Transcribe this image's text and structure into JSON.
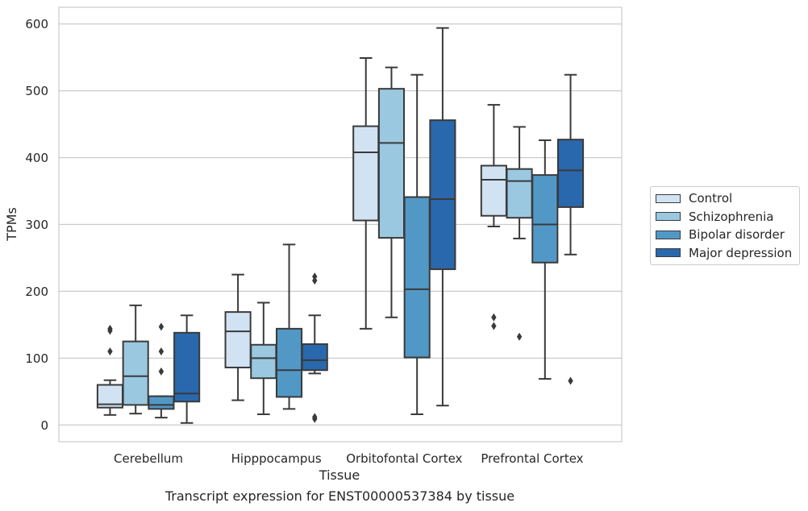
{
  "caption": "Transcript expression for ENST00000537384 by tissue",
  "chart_data": {
    "type": "box",
    "title": "",
    "xlabel": "Tissue",
    "ylabel": "TPMs",
    "ylim": [
      -25,
      625
    ],
    "yticks": [
      0,
      100,
      200,
      300,
      400,
      500,
      600
    ],
    "grid": "horizontal",
    "legend_position": "right",
    "categories": [
      "Cerebellum",
      "Hipppocampus",
      "Orbitofontal Cortex",
      "Prefrontal Cortex"
    ],
    "series": [
      {
        "name": "Control",
        "color": "#d1e3f3",
        "boxes": [
          {
            "whislo": 15,
            "q1": 26,
            "med": 31,
            "q3": 60,
            "whishi": 67,
            "fliers": [
              110,
              141,
              144
            ]
          },
          {
            "whislo": 37,
            "q1": 86,
            "med": 140,
            "q3": 169,
            "whishi": 225,
            "fliers": []
          },
          {
            "whislo": 144,
            "q1": 306,
            "med": 408,
            "q3": 447,
            "whishi": 549,
            "fliers": []
          },
          {
            "whislo": 297,
            "q1": 313,
            "med": 367,
            "q3": 388,
            "whishi": 479,
            "fliers": [
              148,
              161
            ]
          }
        ]
      },
      {
        "name": "Schizophrenia",
        "color": "#9ac8e1",
        "boxes": [
          {
            "whislo": 17,
            "q1": 30,
            "med": 73,
            "q3": 125,
            "whishi": 179,
            "fliers": []
          },
          {
            "whislo": 16,
            "q1": 70,
            "med": 100,
            "q3": 120,
            "whishi": 183,
            "fliers": []
          },
          {
            "whislo": 161,
            "q1": 280,
            "med": 422,
            "q3": 503,
            "whishi": 535,
            "fliers": []
          },
          {
            "whislo": 279,
            "q1": 310,
            "med": 365,
            "q3": 383,
            "whishi": 446,
            "fliers": [
              132
            ]
          }
        ]
      },
      {
        "name": "Bipolar disorder",
        "color": "#5298c6",
        "boxes": [
          {
            "whislo": 11,
            "q1": 24,
            "med": 30,
            "q3": 43,
            "whishi": 43,
            "fliers": [
              80,
              110,
              147
            ]
          },
          {
            "whislo": 24,
            "q1": 42,
            "med": 82,
            "q3": 144,
            "whishi": 270,
            "fliers": []
          },
          {
            "whislo": 16,
            "q1": 101,
            "med": 203,
            "q3": 341,
            "whishi": 524,
            "fliers": []
          },
          {
            "whislo": 69,
            "q1": 243,
            "med": 300,
            "q3": 374,
            "whishi": 426,
            "fliers": []
          }
        ]
      },
      {
        "name": "Major depression",
        "color": "#2a68ad",
        "boxes": [
          {
            "whislo": 3,
            "q1": 35,
            "med": 47,
            "q3": 138,
            "whishi": 164,
            "fliers": []
          },
          {
            "whislo": 77,
            "q1": 82,
            "med": 97,
            "q3": 121,
            "whishi": 164,
            "fliers": [
              9,
              12,
              216,
              222
            ]
          },
          {
            "whislo": 29,
            "q1": 233,
            "med": 338,
            "q3": 456,
            "whishi": 594,
            "fliers": []
          },
          {
            "whislo": 255,
            "q1": 326,
            "med": 381,
            "q3": 427,
            "whishi": 524,
            "fliers": [
              66
            ]
          }
        ]
      }
    ]
  }
}
